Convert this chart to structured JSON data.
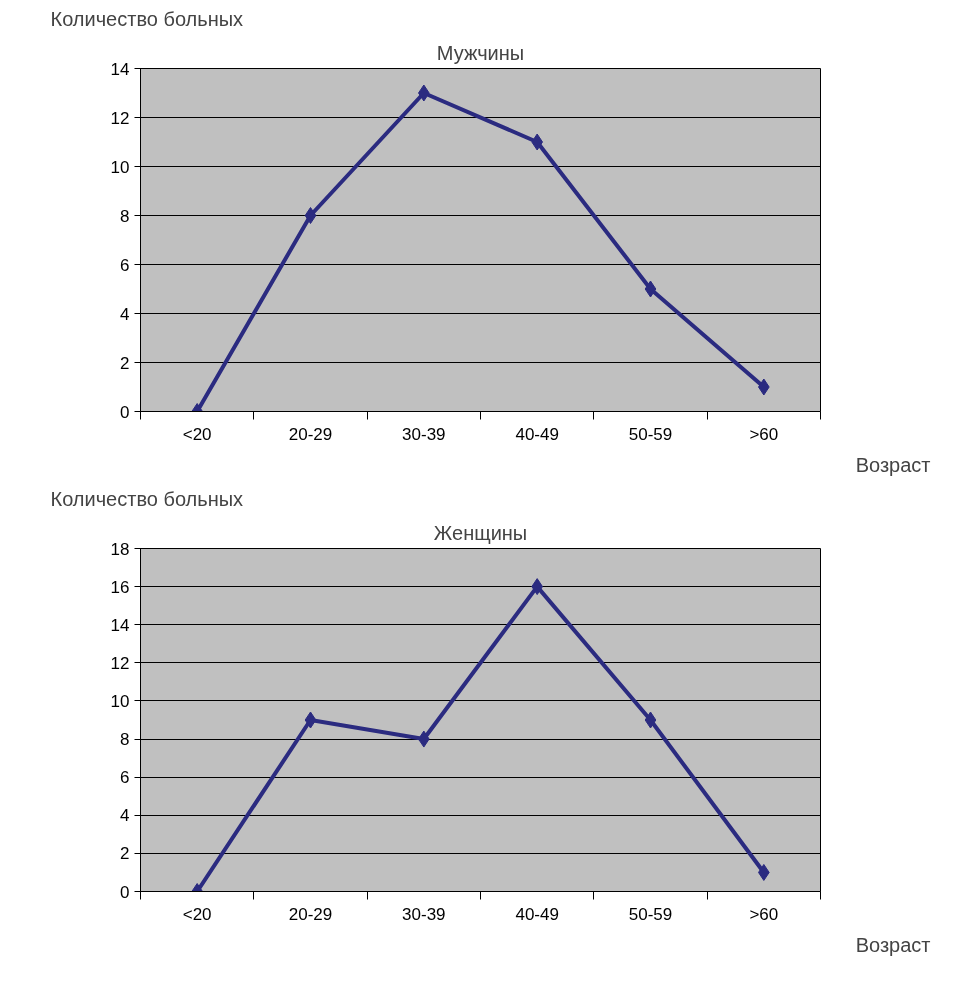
{
  "chart_data": [
    {
      "type": "line",
      "title": "Мужчины",
      "ylabel": "Количество больных",
      "xlabel": "Возраст",
      "categories": [
        "<20",
        "20-29",
        "30-39",
        "40-49",
        "50-59",
        ">60"
      ],
      "series": [
        {
          "color": "#2b2b80",
          "values": [
            0,
            8,
            13,
            11,
            5,
            1
          ]
        }
      ],
      "ylim": [
        0,
        14
      ],
      "yticks": [
        0,
        2,
        4,
        6,
        8,
        10,
        12,
        14
      ],
      "grid": "y",
      "marker": "diamond",
      "line_style": "solid"
    },
    {
      "type": "line",
      "title": "Женщины",
      "ylabel": "Количество больных",
      "xlabel": "Возраст",
      "categories": [
        "<20",
        "20-29",
        "30-39",
        "40-49",
        "50-59",
        ">60"
      ],
      "series": [
        {
          "color": "#2b2b80",
          "values": [
            0,
            9,
            8,
            16,
            9,
            1
          ]
        }
      ],
      "ylim": [
        0,
        18
      ],
      "yticks": [
        0,
        2,
        4,
        6,
        8,
        10,
        12,
        14,
        16,
        18
      ],
      "grid": "y",
      "marker": "diamond",
      "line_style": "solid"
    }
  ]
}
